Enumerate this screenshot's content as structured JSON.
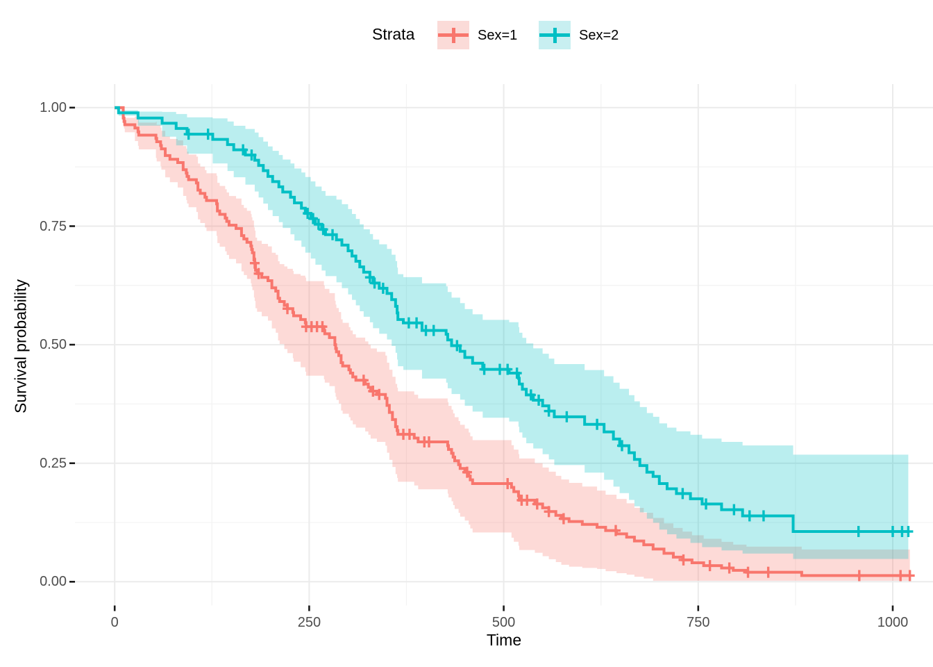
{
  "figure": {
    "background": "#ffffff"
  },
  "legend": {
    "title": "Strata",
    "position": "top",
    "items": [
      {
        "label": "Sex=1",
        "color": "#F8766D",
        "fill": "#FBDBD8"
      },
      {
        "label": "Sex=2",
        "color": "#00BFC4",
        "fill": "#C8EFF1"
      }
    ]
  },
  "axes": {
    "x": {
      "title": "Time",
      "major": [
        0,
        250,
        500,
        750,
        1000
      ],
      "minor": [
        125,
        375,
        625,
        875
      ],
      "tick_labels": [
        "0",
        "250",
        "500",
        "750",
        "1000"
      ]
    },
    "y": {
      "title": "Survival probability",
      "major": [
        1.0,
        0.75,
        0.5,
        0.25,
        0.0
      ],
      "minor": [
        0.875,
        0.625,
        0.375,
        0.125
      ],
      "tick_labels": [
        "1.00",
        "0.75",
        "0.50",
        "0.25",
        "0.00"
      ]
    }
  },
  "chart_data": {
    "type": "line",
    "subtype": "kaplan-meier-step",
    "xlabel": "Time",
    "ylabel": "Survival probability",
    "xlim": [
      0,
      1022
    ],
    "ylim": [
      0,
      1
    ],
    "grid": true,
    "legend_position": "top",
    "grid_major_color": "#EBEBEB",
    "grid_minor_color": "#F3F3F3",
    "tick_color": "#1a1a1a",
    "series": [
      {
        "name": "Sex=1",
        "color": "#F8766D",
        "fill_rgba": "rgba(248,118,109,0.27)",
        "end_time": 1022,
        "points": [
          [
            0,
            1.0
          ],
          [
            11,
            0.978
          ],
          [
            12,
            0.971
          ],
          [
            13,
            0.964
          ],
          [
            26,
            0.957
          ],
          [
            30,
            0.949
          ],
          [
            31,
            0.942
          ],
          [
            53,
            0.935
          ],
          [
            54,
            0.928
          ],
          [
            59,
            0.92
          ],
          [
            60,
            0.913
          ],
          [
            65,
            0.899
          ],
          [
            71,
            0.891
          ],
          [
            81,
            0.884
          ],
          [
            88,
            0.869
          ],
          [
            92,
            0.862
          ],
          [
            93,
            0.855
          ],
          [
            95,
            0.848
          ],
          [
            105,
            0.841
          ],
          [
            107,
            0.826
          ],
          [
            110,
            0.819
          ],
          [
            116,
            0.811
          ],
          [
            118,
            0.804
          ],
          [
            131,
            0.797
          ],
          [
            132,
            0.782
          ],
          [
            135,
            0.775
          ],
          [
            142,
            0.767
          ],
          [
            144,
            0.76
          ],
          [
            147,
            0.752
          ],
          [
            156,
            0.745
          ],
          [
            163,
            0.73
          ],
          [
            166,
            0.723
          ],
          [
            170,
            0.716
          ],
          [
            175,
            0.708
          ],
          [
            176,
            0.701
          ],
          [
            177,
            0.694
          ],
          [
            179,
            0.679
          ],
          [
            180,
            0.672
          ],
          [
            181,
            0.657
          ],
          [
            183,
            0.65
          ],
          [
            189,
            0.642
          ],
          [
            197,
            0.635
          ],
          [
            202,
            0.62
          ],
          [
            207,
            0.613
          ],
          [
            210,
            0.598
          ],
          [
            212,
            0.591
          ],
          [
            218,
            0.583
          ],
          [
            222,
            0.576
          ],
          [
            229,
            0.568
          ],
          [
            230,
            0.561
          ],
          [
            239,
            0.553
          ],
          [
            245,
            0.546
          ],
          [
            246,
            0.538
          ],
          [
            269,
            0.53
          ],
          [
            270,
            0.523
          ],
          [
            276,
            0.515
          ],
          [
            283,
            0.5
          ],
          [
            284,
            0.492
          ],
          [
            285,
            0.485
          ],
          [
            288,
            0.477
          ],
          [
            291,
            0.462
          ],
          [
            293,
            0.455
          ],
          [
            301,
            0.447
          ],
          [
            303,
            0.44
          ],
          [
            306,
            0.432
          ],
          [
            310,
            0.425
          ],
          [
            322,
            0.417
          ],
          [
            326,
            0.41
          ],
          [
            329,
            0.402
          ],
          [
            337,
            0.395
          ],
          [
            348,
            0.387
          ],
          [
            350,
            0.372
          ],
          [
            353,
            0.357
          ],
          [
            357,
            0.342
          ],
          [
            361,
            0.327
          ],
          [
            363,
            0.319
          ],
          [
            364,
            0.311
          ],
          [
            385,
            0.303
          ],
          [
            390,
            0.295
          ],
          [
            428,
            0.287
          ],
          [
            429,
            0.279
          ],
          [
            433,
            0.271
          ],
          [
            435,
            0.263
          ],
          [
            437,
            0.255
          ],
          [
            442,
            0.247
          ],
          [
            444,
            0.239
          ],
          [
            450,
            0.231
          ],
          [
            455,
            0.223
          ],
          [
            457,
            0.215
          ],
          [
            460,
            0.207
          ],
          [
            510,
            0.199
          ],
          [
            513,
            0.19
          ],
          [
            519,
            0.181
          ],
          [
            520,
            0.172
          ],
          [
            540,
            0.164
          ],
          [
            550,
            0.156
          ],
          [
            558,
            0.148
          ],
          [
            567,
            0.14
          ],
          [
            574,
            0.133
          ],
          [
            584,
            0.127
          ],
          [
            601,
            0.121
          ],
          [
            620,
            0.115
          ],
          [
            631,
            0.108
          ],
          [
            645,
            0.101
          ],
          [
            658,
            0.094
          ],
          [
            668,
            0.086
          ],
          [
            680,
            0.078
          ],
          [
            692,
            0.069
          ],
          [
            706,
            0.06
          ],
          [
            718,
            0.052
          ],
          [
            730,
            0.046
          ],
          [
            742,
            0.04
          ],
          [
            757,
            0.034
          ],
          [
            780,
            0.029
          ],
          [
            795,
            0.024
          ],
          [
            812,
            0.02
          ],
          [
            883,
            0.013
          ]
        ],
        "censor_times": [
          180,
          185,
          222,
          246,
          253,
          260,
          267,
          320,
          332,
          340,
          371,
          379,
          398,
          404,
          453,
          505,
          523,
          530,
          543,
          558,
          577,
          644,
          731,
          765,
          790,
          814,
          840,
          957,
          1010,
          1022
        ],
        "ci_upper_halfwidth": [
          [
            0,
            0.004
          ],
          [
            25,
            0.024
          ],
          [
            50,
            0.034
          ],
          [
            100,
            0.055
          ],
          [
            150,
            0.062
          ],
          [
            200,
            0.073
          ],
          [
            250,
            0.098
          ],
          [
            300,
            0.09
          ],
          [
            350,
            0.09
          ],
          [
            400,
            0.092
          ],
          [
            450,
            0.092
          ],
          [
            500,
            0.09
          ],
          [
            550,
            0.085
          ],
          [
            600,
            0.08
          ],
          [
            650,
            0.073
          ],
          [
            700,
            0.064
          ],
          [
            750,
            0.057
          ],
          [
            800,
            0.054
          ],
          [
            880,
            0.055
          ],
          [
            1022,
            0.055
          ]
        ],
        "ci_lower_halfwidth": [
          [
            0,
            0.004
          ],
          [
            25,
            0.027
          ],
          [
            50,
            0.04
          ],
          [
            100,
            0.06
          ],
          [
            150,
            0.072
          ],
          [
            200,
            0.085
          ],
          [
            250,
            0.105
          ],
          [
            300,
            0.1
          ],
          [
            350,
            0.1
          ],
          [
            400,
            0.1
          ],
          [
            450,
            0.102
          ],
          [
            500,
            0.107
          ],
          [
            550,
            0.102
          ],
          [
            600,
            0.092
          ],
          [
            650,
            0.082
          ],
          [
            700,
            0.064
          ],
          [
            750,
            0.047
          ],
          [
            800,
            0.032
          ],
          [
            880,
            0.012
          ],
          [
            1022,
            0.012
          ]
        ]
      },
      {
        "name": "Sex=2",
        "color": "#00BFC4",
        "fill_rgba": "rgba(0,191,196,0.27)",
        "end_time": 1020,
        "points": [
          [
            0,
            1.0
          ],
          [
            5,
            0.989
          ],
          [
            30,
            0.978
          ],
          [
            61,
            0.967
          ],
          [
            79,
            0.956
          ],
          [
            93,
            0.944
          ],
          [
            126,
            0.933
          ],
          [
            145,
            0.922
          ],
          [
            153,
            0.911
          ],
          [
            168,
            0.9
          ],
          [
            180,
            0.889
          ],
          [
            185,
            0.878
          ],
          [
            191,
            0.867
          ],
          [
            197,
            0.855
          ],
          [
            203,
            0.844
          ],
          [
            211,
            0.833
          ],
          [
            216,
            0.822
          ],
          [
            226,
            0.811
          ],
          [
            231,
            0.799
          ],
          [
            240,
            0.788
          ],
          [
            245,
            0.777
          ],
          [
            252,
            0.766
          ],
          [
            258,
            0.754
          ],
          [
            266,
            0.743
          ],
          [
            271,
            0.732
          ],
          [
            285,
            0.721
          ],
          [
            292,
            0.71
          ],
          [
            300,
            0.698
          ],
          [
            305,
            0.687
          ],
          [
            310,
            0.676
          ],
          [
            315,
            0.664
          ],
          [
            320,
            0.653
          ],
          [
            328,
            0.642
          ],
          [
            332,
            0.63
          ],
          [
            340,
            0.619
          ],
          [
            350,
            0.608
          ],
          [
            356,
            0.595
          ],
          [
            361,
            0.581
          ],
          [
            363,
            0.567
          ],
          [
            364,
            0.553
          ],
          [
            371,
            0.546
          ],
          [
            395,
            0.53
          ],
          [
            426,
            0.522
          ],
          [
            428,
            0.51
          ],
          [
            433,
            0.498
          ],
          [
            444,
            0.486
          ],
          [
            450,
            0.473
          ],
          [
            460,
            0.461
          ],
          [
            473,
            0.448
          ],
          [
            507,
            0.44
          ],
          [
            519,
            0.429
          ],
          [
            520,
            0.417
          ],
          [
            524,
            0.406
          ],
          [
            529,
            0.394
          ],
          [
            538,
            0.383
          ],
          [
            550,
            0.371
          ],
          [
            558,
            0.36
          ],
          [
            565,
            0.348
          ],
          [
            604,
            0.332
          ],
          [
            629,
            0.316
          ],
          [
            641,
            0.301
          ],
          [
            649,
            0.287
          ],
          [
            661,
            0.272
          ],
          [
            668,
            0.258
          ],
          [
            675,
            0.245
          ],
          [
            684,
            0.231
          ],
          [
            692,
            0.222
          ],
          [
            700,
            0.207
          ],
          [
            710,
            0.196
          ],
          [
            722,
            0.186
          ],
          [
            740,
            0.175
          ],
          [
            755,
            0.164
          ],
          [
            780,
            0.152
          ],
          [
            807,
            0.139
          ],
          [
            872,
            0.106
          ]
        ],
        "censor_times": [
          95,
          120,
          165,
          176,
          248,
          255,
          262,
          268,
          280,
          328,
          334,
          345,
          378,
          388,
          400,
          410,
          440,
          475,
          495,
          505,
          517,
          535,
          545,
          558,
          581,
          620,
          652,
          730,
          760,
          796,
          816,
          834,
          956,
          1000,
          1012,
          1020
        ],
        "ci_upper_halfwidth": [
          [
            0,
            0.004
          ],
          [
            25,
            0.012
          ],
          [
            50,
            0.02
          ],
          [
            100,
            0.038
          ],
          [
            150,
            0.05
          ],
          [
            200,
            0.064
          ],
          [
            250,
            0.078
          ],
          [
            300,
            0.088
          ],
          [
            350,
            0.094
          ],
          [
            400,
            0.1
          ],
          [
            450,
            0.102
          ],
          [
            500,
            0.107
          ],
          [
            550,
            0.11
          ],
          [
            600,
            0.114
          ],
          [
            650,
            0.12
          ],
          [
            700,
            0.127
          ],
          [
            750,
            0.137
          ],
          [
            800,
            0.147
          ],
          [
            872,
            0.162
          ],
          [
            1022,
            0.162
          ]
        ],
        "ci_lower_halfwidth": [
          [
            0,
            0.004
          ],
          [
            25,
            0.014
          ],
          [
            50,
            0.024
          ],
          [
            100,
            0.044
          ],
          [
            150,
            0.057
          ],
          [
            200,
            0.072
          ],
          [
            250,
            0.084
          ],
          [
            300,
            0.092
          ],
          [
            350,
            0.097
          ],
          [
            400,
            0.102
          ],
          [
            450,
            0.102
          ],
          [
            500,
            0.102
          ],
          [
            550,
            0.102
          ],
          [
            600,
            0.102
          ],
          [
            650,
            0.1
          ],
          [
            700,
            0.097
          ],
          [
            750,
            0.092
          ],
          [
            800,
            0.082
          ],
          [
            872,
            0.058
          ],
          [
            1022,
            0.058
          ]
        ]
      }
    ]
  }
}
